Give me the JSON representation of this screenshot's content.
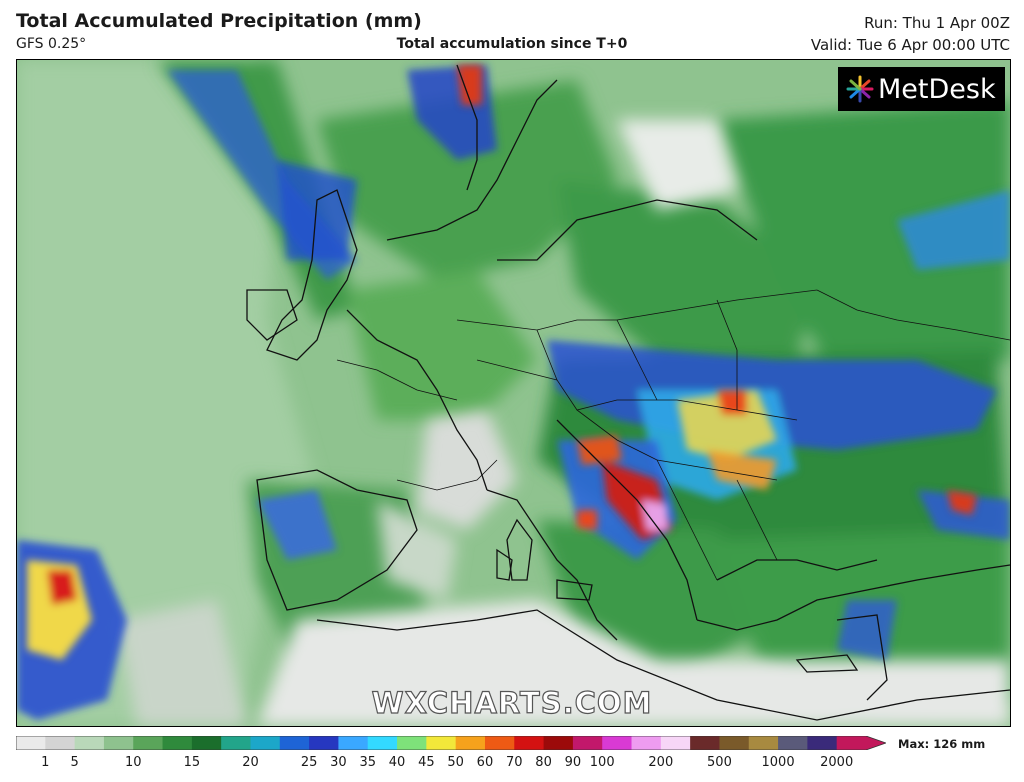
{
  "header": {
    "title": "Total Accumulated Precipitation (mm)",
    "model": "GFS 0.25°",
    "subtitle": "Total accumulation since T+0",
    "run": "Run: Thu 1 Apr 00Z",
    "valid": "Valid: Tue 6 Apr 00:00 UTC"
  },
  "logo": {
    "text": "MetDesk",
    "icon": "starburst-logo-icon"
  },
  "watermark": "WXCHARTS.COM",
  "legend": {
    "max_label": "Max: 126 mm",
    "ticks": [
      "1",
      "5",
      "10",
      "15",
      "20",
      "25",
      "30",
      "35",
      "40",
      "45",
      "50",
      "60",
      "70",
      "80",
      "90",
      "100",
      "200",
      "500",
      "1000",
      "2000"
    ],
    "colors": [
      "#eaeaea",
      "#d4d4d4",
      "#b9d8b9",
      "#8ec28e",
      "#5aa55a",
      "#2f8a3c",
      "#1b6e2c",
      "#22a58a",
      "#1ca7c9",
      "#1e64d6",
      "#2637c0",
      "#3aa8ff",
      "#33d9ff",
      "#7ee27a",
      "#f2e83a",
      "#f6a21c",
      "#ee5a14",
      "#d41212",
      "#9c0a0a",
      "#c2186b",
      "#d93ad4",
      "#ee9cf0",
      "#f7d6f7",
      "#6a2a2a",
      "#7a5a2a",
      "#a88a40",
      "#5a5a7a",
      "#3a2a7a",
      "#c2185b"
    ]
  }
}
